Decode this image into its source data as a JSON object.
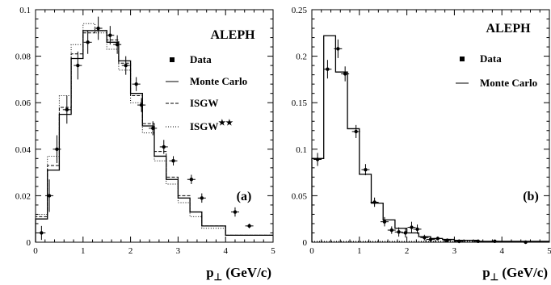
{
  "chart_data": [
    {
      "type": "step-histogram with data points",
      "panel_label": "(a)",
      "brand": "ALEPH",
      "xlabel": "p⊥ (GeV/c)",
      "ylabel": "",
      "xlim": [
        0,
        5
      ],
      "ylim": [
        0,
        0.1
      ],
      "xticks": [
        "0",
        "1",
        "2",
        "3",
        "4",
        "5"
      ],
      "yticks": [
        "0",
        "0.02",
        "0.04",
        "0.06",
        "0.08",
        "0.1"
      ],
      "legend": [
        "Data",
        "Monte Carlo",
        "ISGW",
        "ISGW**"
      ],
      "bin_edges": [
        0,
        0.25,
        0.5,
        0.75,
        1.0,
        1.25,
        1.5,
        1.75,
        2.0,
        2.25,
        2.5,
        2.75,
        3.0,
        3.25,
        3.5,
        4.0,
        5.0
      ],
      "series": [
        {
          "name": "Monte Carlo",
          "style": "solid",
          "values": [
            0.01,
            0.031,
            0.055,
            0.079,
            0.091,
            0.091,
            0.086,
            0.078,
            0.064,
            0.05,
            0.037,
            0.027,
            0.019,
            0.013,
            0.007,
            0.003
          ]
        },
        {
          "name": "ISGW",
          "style": "dashed",
          "values": [
            0.011,
            0.033,
            0.058,
            0.081,
            0.09,
            0.091,
            0.087,
            0.077,
            0.063,
            0.051,
            0.039,
            0.028,
            0.02,
            0.013,
            0.007,
            0.003
          ]
        },
        {
          "name": "ISGW**",
          "style": "dotted",
          "values": [
            0.012,
            0.037,
            0.063,
            0.085,
            0.094,
            0.09,
            0.083,
            0.074,
            0.06,
            0.047,
            0.035,
            0.025,
            0.017,
            0.011,
            0.006,
            0.003
          ]
        }
      ],
      "data_points": {
        "x": [
          0.125,
          0.29,
          0.45,
          0.66,
          0.89,
          1.1,
          1.32,
          1.57,
          1.72,
          1.9,
          2.12,
          2.23,
          2.47,
          2.7,
          2.9,
          3.28,
          3.5,
          4.2,
          4.5
        ],
        "y": [
          0.004,
          0.02,
          0.04,
          0.057,
          0.076,
          0.086,
          0.092,
          0.089,
          0.085,
          0.076,
          0.068,
          0.059,
          0.049,
          0.041,
          0.035,
          0.027,
          0.019,
          0.013,
          0.007
        ],
        "yerr": [
          0.003,
          0.007,
          0.006,
          0.006,
          0.006,
          0.005,
          0.005,
          0.004,
          0.004,
          0.004,
          0.003,
          0.003,
          0.003,
          0.003,
          0.002,
          0.002,
          0.002,
          0.002,
          0.001
        ]
      }
    },
    {
      "type": "step-histogram with data points",
      "panel_label": "(b)",
      "brand": "ALEPH",
      "xlabel": "p⊥ (GeV/c)",
      "ylabel": "",
      "xlim": [
        0,
        5
      ],
      "ylim": [
        0,
        0.25
      ],
      "xticks": [
        "0",
        "1",
        "2",
        "3",
        "4",
        "5"
      ],
      "yticks": [
        "0",
        "0.05",
        "0.1",
        "0.15",
        "0.2",
        "0.25"
      ],
      "legend": [
        "Data",
        "Monte Carlo"
      ],
      "bin_edges": [
        0,
        0.25,
        0.5,
        0.75,
        1.0,
        1.25,
        1.5,
        1.75,
        2.0,
        2.25,
        2.5,
        2.75,
        3.0,
        3.5,
        4.0,
        5.0
      ],
      "series": [
        {
          "name": "Monte Carlo",
          "style": "solid",
          "values": [
            0.09,
            0.222,
            0.183,
            0.122,
            0.073,
            0.042,
            0.024,
            0.015,
            0.01,
            0.006,
            0.004,
            0.003,
            0.002,
            0.001,
            0.001
          ]
        }
      ],
      "baseline_dotted": 0.0,
      "data_points": {
        "x": [
          0.12,
          0.33,
          0.55,
          0.7,
          0.93,
          1.13,
          1.32,
          1.53,
          1.68,
          1.83,
          1.97,
          2.1,
          2.22,
          2.37,
          2.5,
          2.65,
          2.85,
          3.1,
          3.5,
          3.85,
          4.5
        ],
        "y": [
          0.089,
          0.186,
          0.208,
          0.181,
          0.119,
          0.078,
          0.043,
          0.022,
          0.013,
          0.011,
          0.01,
          0.016,
          0.014,
          0.005,
          0.003,
          0.004,
          0.002,
          0.001,
          0.001,
          0.001,
          0.0
        ],
        "yerr": [
          0.007,
          0.01,
          0.01,
          0.008,
          0.007,
          0.006,
          0.005,
          0.005,
          0.004,
          0.005,
          0.005,
          0.006,
          0.005,
          0.003,
          0.003,
          0.002,
          0.002,
          0.002,
          0.001,
          0.001,
          0.001
        ]
      }
    }
  ]
}
